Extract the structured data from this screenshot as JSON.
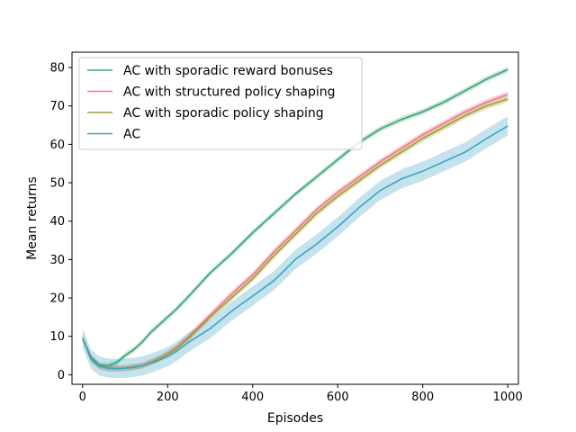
{
  "chart_data": {
    "type": "line",
    "title": "",
    "xlabel": "Episodes",
    "ylabel": "Mean returns",
    "xlim": [
      -25,
      1025
    ],
    "ylim": [
      -2.5,
      84
    ],
    "xticks": [
      0,
      200,
      400,
      600,
      800,
      1000
    ],
    "yticks": [
      0,
      10,
      20,
      30,
      40,
      50,
      60,
      70,
      80
    ],
    "grid": false,
    "legend_position": "upper-left",
    "series": [
      {
        "name": "AC with sporadic reward bonuses",
        "color": "#3aa672",
        "band": 0.7,
        "x": [
          0,
          20,
          40,
          60,
          80,
          100,
          120,
          140,
          160,
          180,
          200,
          220,
          250,
          300,
          350,
          400,
          450,
          500,
          550,
          600,
          650,
          700,
          750,
          800,
          850,
          900,
          950,
          1000
        ],
        "y": [
          9.5,
          4.5,
          2.5,
          2.3,
          3.2,
          5.0,
          6.5,
          8.5,
          11.0,
          13.0,
          15.0,
          17.0,
          20.5,
          26.5,
          31.5,
          37.0,
          42.0,
          47.0,
          51.5,
          56.0,
          60.5,
          64.0,
          66.5,
          68.5,
          71.0,
          74.0,
          77.0,
          79.5
        ]
      },
      {
        "name": "AC with structured policy shaping",
        "color": "#f07889",
        "band": 0.8,
        "x": [
          0,
          20,
          40,
          60,
          80,
          100,
          120,
          140,
          160,
          180,
          200,
          220,
          250,
          300,
          350,
          400,
          450,
          500,
          550,
          600,
          650,
          700,
          750,
          800,
          850,
          900,
          950,
          1000
        ],
        "y": [
          9.5,
          4.0,
          2.2,
          1.7,
          1.6,
          1.7,
          2.0,
          2.4,
          3.2,
          4.2,
          5.5,
          7.0,
          10.0,
          15.5,
          21.0,
          26.0,
          32.0,
          37.5,
          43.0,
          47.5,
          51.5,
          55.5,
          59.0,
          62.5,
          65.5,
          68.5,
          71.0,
          73.0
        ]
      },
      {
        "name": "AC with sporadic policy shaping",
        "color": "#a0a034",
        "band": 0.8,
        "x": [
          0,
          20,
          40,
          60,
          80,
          100,
          120,
          140,
          160,
          180,
          200,
          220,
          250,
          300,
          350,
          400,
          450,
          500,
          550,
          600,
          650,
          700,
          750,
          800,
          850,
          900,
          950,
          1000
        ],
        "y": [
          9.5,
          4.0,
          2.2,
          1.7,
          1.6,
          1.7,
          2.0,
          2.4,
          3.2,
          4.2,
          5.3,
          6.7,
          9.6,
          15.0,
          20.0,
          25.0,
          31.0,
          36.5,
          42.0,
          46.5,
          50.5,
          54.5,
          58.0,
          61.5,
          64.5,
          67.5,
          70.0,
          71.8
        ]
      },
      {
        "name": "AC",
        "color": "#3ba3c4",
        "band": 2.5,
        "x": [
          0,
          20,
          40,
          60,
          80,
          100,
          120,
          140,
          160,
          180,
          200,
          220,
          250,
          300,
          350,
          400,
          450,
          500,
          550,
          600,
          650,
          700,
          750,
          800,
          850,
          900,
          950,
          1000
        ],
        "y": [
          9.5,
          4.0,
          2.2,
          1.7,
          1.6,
          1.7,
          1.9,
          2.3,
          3.0,
          3.8,
          4.7,
          6.0,
          8.5,
          12.0,
          16.5,
          20.5,
          24.5,
          30.0,
          34.0,
          38.5,
          43.5,
          48.0,
          51.0,
          53.0,
          55.5,
          58.0,
          61.5,
          64.8
        ]
      }
    ]
  }
}
